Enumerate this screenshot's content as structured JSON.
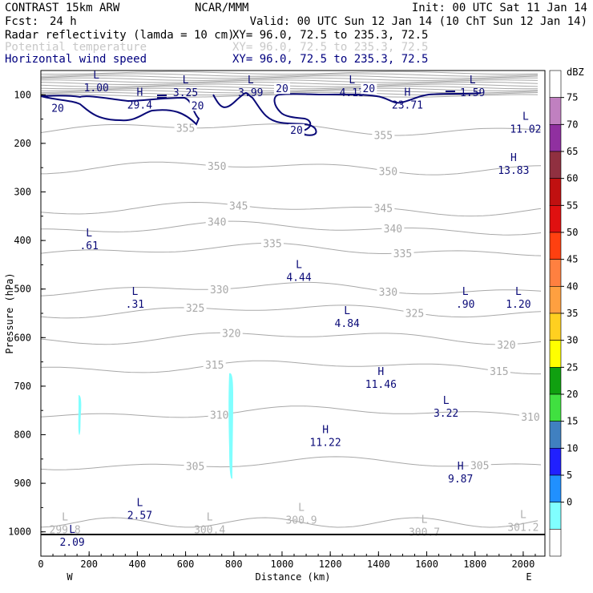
{
  "header": {
    "source": "CONTRAST 15km ARW",
    "org": "NCAR/MMM",
    "init": "Init: 00 UTC Sat 11 Jan 14",
    "fcst_label": "Fcst:",
    "fcst_value": "24 h",
    "valid": "Valid: 00 UTC Sun 12 Jan 14 (10 ChT Sun 12 Jan 14)"
  },
  "fields": [
    {
      "name": "Radar reflectivity (lamda = 10 cm)",
      "xy": "XY=  96.0, 72.5 to 235.3, 72.5",
      "color": "#000000"
    },
    {
      "name": "Potential temperature",
      "xy": "XY=  96.0, 72.5 to 235.3, 72.5",
      "color": "#b4b4b4"
    },
    {
      "name": "Horizontal wind speed",
      "xy": "XY=  96.0, 72.5 to 235.3, 72.5",
      "color": "#00007f"
    }
  ],
  "colors": {
    "theta": "#a8a8a8",
    "wind": "#0a0a78",
    "refl": "#80ffff",
    "axis": "#000000"
  },
  "chart_data": {
    "type": "cross-section",
    "xlabel": "Distance (km)",
    "ylabel": "Pressure (hPa)",
    "xlim": [
      0,
      2090
    ],
    "ylim": [
      1050,
      50
    ],
    "xticks": [
      "0",
      "200",
      "400",
      "600",
      "800",
      "1000",
      "1200",
      "1400",
      "1600",
      "1800",
      "2000"
    ],
    "yticks": [
      "100",
      "200",
      "300",
      "400",
      "500",
      "600",
      "700",
      "800",
      "900",
      "1000"
    ],
    "x_end_labels": {
      "left": "W",
      "right": "E"
    },
    "theta_contours": [
      {
        "level": "305",
        "p": 860,
        "label_x": 640,
        "label2_x": 1820
      },
      {
        "level": "310",
        "p": 755,
        "label_x": 740,
        "label2_x": 2030
      },
      {
        "level": "315",
        "p": 660,
        "label_x": 720,
        "label2_x": 1900
      },
      {
        "level": "320",
        "p": 600,
        "label_x": 790,
        "label2_x": 1930
      },
      {
        "level": "325",
        "p": 545,
        "label_x": 640,
        "label2_x": 1550
      },
      {
        "level": "330",
        "p": 500,
        "label_x": 740,
        "label2_x": 1440
      },
      {
        "level": "335",
        "p": 420,
        "label_x": 960,
        "label2_x": 1500
      },
      {
        "level": "340",
        "p": 375,
        "label_x": 730,
        "label2_x": 1460
      },
      {
        "level": "345",
        "p": 335,
        "label_x": 820,
        "label2_x": 1420
      },
      {
        "level": "350",
        "p": 250,
        "label_x": 730,
        "label2_x": 1440
      },
      {
        "level": "355",
        "p": 170,
        "label_x": 600,
        "label2_x": 1420
      }
    ],
    "surface_theta": [
      {
        "x": 100,
        "p": 1000,
        "text": "L",
        "value": "299.8"
      },
      {
        "x": 700,
        "p": 1000,
        "text": "L",
        "value": "300.4"
      },
      {
        "x": 1080,
        "p": 980,
        "text": "L",
        "value": "300.9"
      },
      {
        "x": 1590,
        "p": 1005,
        "text": "L",
        "value": "300.7"
      },
      {
        "x": 2000,
        "p": 995,
        "text": "L",
        "value": "301.2"
      }
    ],
    "wind_extrema": [
      {
        "type": "L",
        "value": "1.00",
        "x": 230,
        "p": 80
      },
      {
        "type": "H",
        "value": "29.4",
        "x": 410,
        "p": 115
      },
      {
        "type": "L",
        "value": "3.25",
        "x": 600,
        "p": 90
      },
      {
        "type": "L",
        "value": "3.99",
        "x": 870,
        "p": 90
      },
      {
        "type": "L",
        "value": "4.13",
        "x": 1290,
        "p": 90
      },
      {
        "type": "H",
        "value": "23.71",
        "x": 1520,
        "p": 115
      },
      {
        "type": "L",
        "value": "1.59",
        "x": 1790,
        "p": 90
      },
      {
        "type": "L",
        "value": "11.02",
        "x": 2010,
        "p": 165
      },
      {
        "type": "H",
        "value": "13.83",
        "x": 1960,
        "p": 250
      },
      {
        "type": "L",
        "value": ".61",
        "x": 200,
        "p": 405
      },
      {
        "type": "L",
        "value": "4.44",
        "x": 1070,
        "p": 470
      },
      {
        "type": "L",
        "value": ".31",
        "x": 390,
        "p": 525
      },
      {
        "type": "L",
        "value": ".90",
        "x": 1760,
        "p": 525
      },
      {
        "type": "L",
        "value": "1.20",
        "x": 1980,
        "p": 525
      },
      {
        "type": "L",
        "value": "4.84",
        "x": 1270,
        "p": 565
      },
      {
        "type": "H",
        "value": "11.46",
        "x": 1410,
        "p": 690
      },
      {
        "type": "L",
        "value": "3.22",
        "x": 1680,
        "p": 750
      },
      {
        "type": "H",
        "value": "11.22",
        "x": 1180,
        "p": 810
      },
      {
        "type": "H",
        "value": "9.87",
        "x": 1740,
        "p": 885
      },
      {
        "type": "L",
        "value": "2.57",
        "x": 410,
        "p": 960
      },
      {
        "type": "L",
        "value": "2.09",
        "x": 130,
        "p": 1015
      }
    ],
    "wind_contour_labels": [
      {
        "level": "20",
        "x": 70,
        "p": 130
      },
      {
        "level": "20",
        "x": 650,
        "p": 125
      },
      {
        "level": "20",
        "x": 1000,
        "p": 90
      },
      {
        "level": "20",
        "x": 1060,
        "p": 175
      },
      {
        "level": "20",
        "x": 1360,
        "p": 90
      }
    ],
    "colorbar": {
      "unit": "dBZ",
      "levels": [
        "75",
        "70",
        "65",
        "60",
        "55",
        "50",
        "45",
        "40",
        "35",
        "30",
        "25",
        "20",
        "15",
        "10",
        "5",
        "0"
      ],
      "colors": [
        "#ffffff",
        "#c080c0",
        "#9030a0",
        "#903040",
        "#c01010",
        "#e01010",
        "#ff4010",
        "#ff8040",
        "#ffa040",
        "#ffd020",
        "#ffff00",
        "#10a010",
        "#40e040",
        "#4080c0",
        "#2020ff",
        "#2090ff",
        "#80ffff",
        "#ffffff"
      ]
    }
  }
}
